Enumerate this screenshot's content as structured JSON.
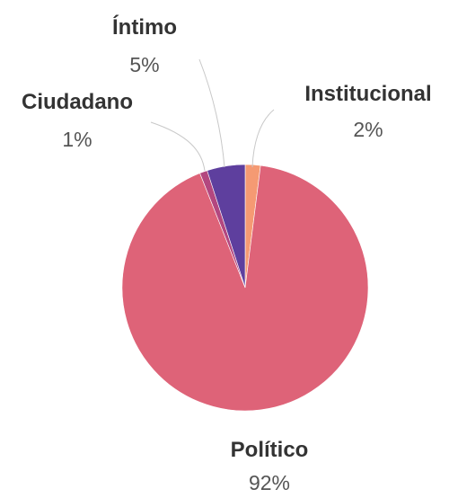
{
  "chart_data": {
    "type": "pie",
    "categories": [
      "Institucional",
      "Político",
      "Ciudadano",
      "Íntimo"
    ],
    "values": [
      2,
      92,
      1,
      5
    ],
    "labels": [
      "2%",
      "92%",
      "1%",
      "5%"
    ],
    "colors": [
      "#f59a73",
      "#de6378",
      "#b3477f",
      "#5e3f9e"
    ],
    "start_angle_deg": 0,
    "direction": "clockwise",
    "legend": "none",
    "title": "",
    "data_labels": "outside with leader lines"
  }
}
